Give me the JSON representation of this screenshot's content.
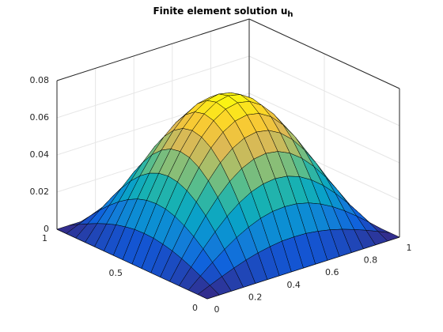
{
  "chart_data": {
    "type": "surface",
    "title": {
      "text": "Finite element solution u",
      "subscript": "h"
    },
    "colormap": "parula",
    "grid": true,
    "x": [
      0,
      0.0625,
      0.125,
      0.1875,
      0.25,
      0.3125,
      0.375,
      0.4375,
      0.5,
      0.5625,
      0.625,
      0.6875,
      0.75,
      0.8125,
      0.875,
      0.9375,
      1
    ],
    "y": [
      0,
      0.0625,
      0.125,
      0.1875,
      0.25,
      0.3125,
      0.375,
      0.4375,
      0.5,
      0.5625,
      0.625,
      0.6875,
      0.75,
      0.8125,
      0.875,
      0.9375,
      1
    ],
    "z": [
      [
        0,
        0,
        0,
        0,
        0,
        0,
        0,
        0,
        0,
        0,
        0,
        0,
        0,
        0,
        0,
        0,
        0
      ],
      [
        0,
        0.0028,
        0.0055,
        0.008,
        0.0102,
        0.012,
        0.0133,
        0.0142,
        0.0144,
        0.0142,
        0.0133,
        0.012,
        0.0102,
        0.008,
        0.0055,
        0.0028,
        0
      ],
      [
        0,
        0.0055,
        0.0108,
        0.0157,
        0.02,
        0.0235,
        0.0262,
        0.0278,
        0.0283,
        0.0278,
        0.0262,
        0.0235,
        0.02,
        0.0157,
        0.0108,
        0.0055,
        0
      ],
      [
        0,
        0.008,
        0.0157,
        0.0228,
        0.0291,
        0.0342,
        0.038,
        0.0403,
        0.0411,
        0.0403,
        0.038,
        0.0342,
        0.0291,
        0.0228,
        0.0157,
        0.008,
        0
      ],
      [
        0,
        0.0102,
        0.02,
        0.0291,
        0.037,
        0.0435,
        0.0483,
        0.0513,
        0.0523,
        0.0513,
        0.0483,
        0.0435,
        0.037,
        0.0291,
        0.02,
        0.0102,
        0
      ],
      [
        0,
        0.012,
        0.0235,
        0.0342,
        0.0435,
        0.0512,
        0.0568,
        0.0603,
        0.0615,
        0.0603,
        0.0568,
        0.0512,
        0.0435,
        0.0342,
        0.0235,
        0.012,
        0
      ],
      [
        0,
        0.0133,
        0.0262,
        0.038,
        0.0483,
        0.0568,
        0.0632,
        0.0671,
        0.0684,
        0.0671,
        0.0632,
        0.0568,
        0.0483,
        0.038,
        0.0262,
        0.0133,
        0
      ],
      [
        0,
        0.0142,
        0.0278,
        0.0403,
        0.0513,
        0.0603,
        0.0671,
        0.0712,
        0.0726,
        0.0712,
        0.0671,
        0.0603,
        0.0513,
        0.0403,
        0.0278,
        0.0142,
        0
      ],
      [
        0,
        0.0144,
        0.0283,
        0.0411,
        0.0523,
        0.0615,
        0.0684,
        0.0726,
        0.074,
        0.0726,
        0.0684,
        0.0615,
        0.0523,
        0.0411,
        0.0283,
        0.0144,
        0
      ],
      [
        0,
        0.0142,
        0.0278,
        0.0403,
        0.0513,
        0.0603,
        0.0671,
        0.0712,
        0.0726,
        0.0712,
        0.0671,
        0.0603,
        0.0513,
        0.0403,
        0.0278,
        0.0142,
        0
      ],
      [
        0,
        0.0133,
        0.0262,
        0.038,
        0.0483,
        0.0568,
        0.0632,
        0.0671,
        0.0684,
        0.0671,
        0.0632,
        0.0568,
        0.0483,
        0.038,
        0.0262,
        0.0133,
        0
      ],
      [
        0,
        0.012,
        0.0235,
        0.0342,
        0.0435,
        0.0512,
        0.0568,
        0.0603,
        0.0615,
        0.0603,
        0.0568,
        0.0512,
        0.0435,
        0.0342,
        0.0235,
        0.012,
        0
      ],
      [
        0,
        0.0102,
        0.02,
        0.0291,
        0.037,
        0.0435,
        0.0483,
        0.0513,
        0.0523,
        0.0513,
        0.0483,
        0.0435,
        0.037,
        0.0291,
        0.02,
        0.0102,
        0
      ],
      [
        0,
        0.008,
        0.0157,
        0.0228,
        0.0291,
        0.0342,
        0.038,
        0.0403,
        0.0411,
        0.0403,
        0.038,
        0.0342,
        0.0291,
        0.0228,
        0.0157,
        0.008,
        0
      ],
      [
        0,
        0.0055,
        0.0108,
        0.0157,
        0.02,
        0.0235,
        0.0262,
        0.0278,
        0.0283,
        0.0278,
        0.0262,
        0.0235,
        0.02,
        0.0157,
        0.0108,
        0.0055,
        0
      ],
      [
        0,
        0.0028,
        0.0055,
        0.008,
        0.0102,
        0.012,
        0.0133,
        0.0142,
        0.0144,
        0.0142,
        0.0133,
        0.012,
        0.0102,
        0.008,
        0.0055,
        0.0028,
        0
      ],
      [
        0,
        0,
        0,
        0,
        0,
        0,
        0,
        0,
        0,
        0,
        0,
        0,
        0,
        0,
        0,
        0,
        0
      ]
    ],
    "xlim": [
      0,
      1
    ],
    "ylim": [
      0,
      1
    ],
    "zlim": [
      0,
      0.08
    ],
    "xticks": [
      0,
      0.2,
      0.4,
      0.6,
      0.8,
      1
    ],
    "yticks": [
      0,
      0.5,
      1
    ],
    "zticks": [
      0,
      0.02,
      0.04,
      0.06,
      0.08
    ]
  }
}
